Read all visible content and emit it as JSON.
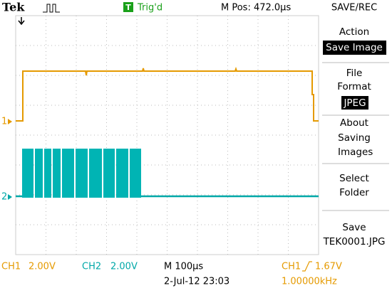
{
  "header": {
    "brand": "Tek",
    "trigger_icon": "T",
    "trigger_status": "Trig'd",
    "position": "M Pos: 472.0µs"
  },
  "channel_markers": {
    "ch1": "1",
    "ch2": "2"
  },
  "menu": {
    "title": "SAVE/REC",
    "items": [
      {
        "label": "Action",
        "value": "Save Image"
      },
      {
        "label": "File Format",
        "value": "JPEG"
      },
      {
        "label": "About Saving Images"
      },
      {
        "label": "Select Folder"
      },
      {
        "label": "Save",
        "value": "TEK0001.JPG"
      }
    ]
  },
  "footer": {
    "ch1_label": "CH1",
    "ch1_scale": "2.00V",
    "ch2_label": "CH2",
    "ch2_scale": "2.00V",
    "timebase": "M 100µs",
    "date": "2-Jul-12 23:03",
    "trigger_source": "CH1",
    "trigger_level": "1.67V",
    "frequency": "1.00000kHz"
  }
}
